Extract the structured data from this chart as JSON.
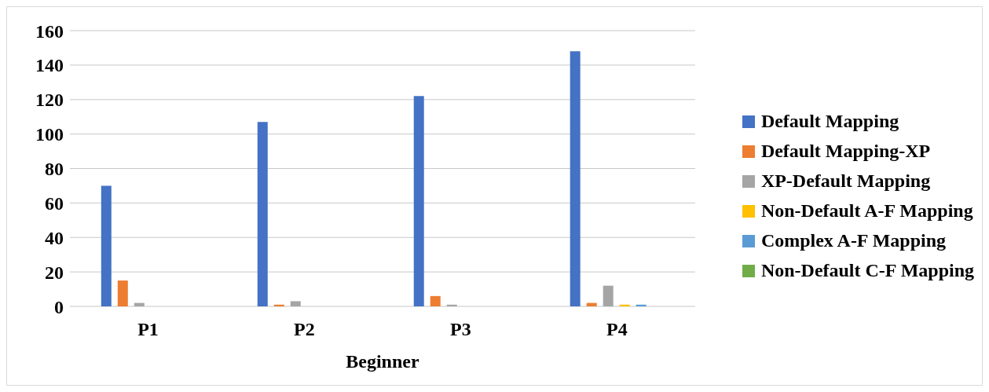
{
  "chart_data": {
    "type": "bar",
    "xlabel": "Beginner",
    "categories": [
      "P1",
      "P2",
      "P3",
      "P4"
    ],
    "series": [
      {
        "name": "Default Mapping",
        "color": "#4472c4",
        "values": [
          70,
          107,
          122,
          148
        ]
      },
      {
        "name": "Default Mapping-XP",
        "color": "#ed7d31",
        "values": [
          15,
          1,
          6,
          2
        ]
      },
      {
        "name": "XP-Default Mapping",
        "color": "#a5a5a5",
        "values": [
          2,
          3,
          1,
          12
        ]
      },
      {
        "name": "Non-Default A-F Mapping",
        "color": "#ffc000",
        "values": [
          0,
          0,
          0,
          1
        ]
      },
      {
        "name": "Complex A-F Mapping",
        "color": "#5b9bd5",
        "values": [
          0,
          0,
          0,
          1
        ]
      },
      {
        "name": "Non-Default C-F Mapping",
        "color": "#70ad47",
        "values": [
          0,
          0,
          0,
          0
        ]
      }
    ],
    "ylim": [
      0,
      160
    ],
    "yticks": [
      0,
      20,
      40,
      60,
      80,
      100,
      120,
      140,
      160
    ],
    "grid": "y",
    "legend": "right"
  }
}
